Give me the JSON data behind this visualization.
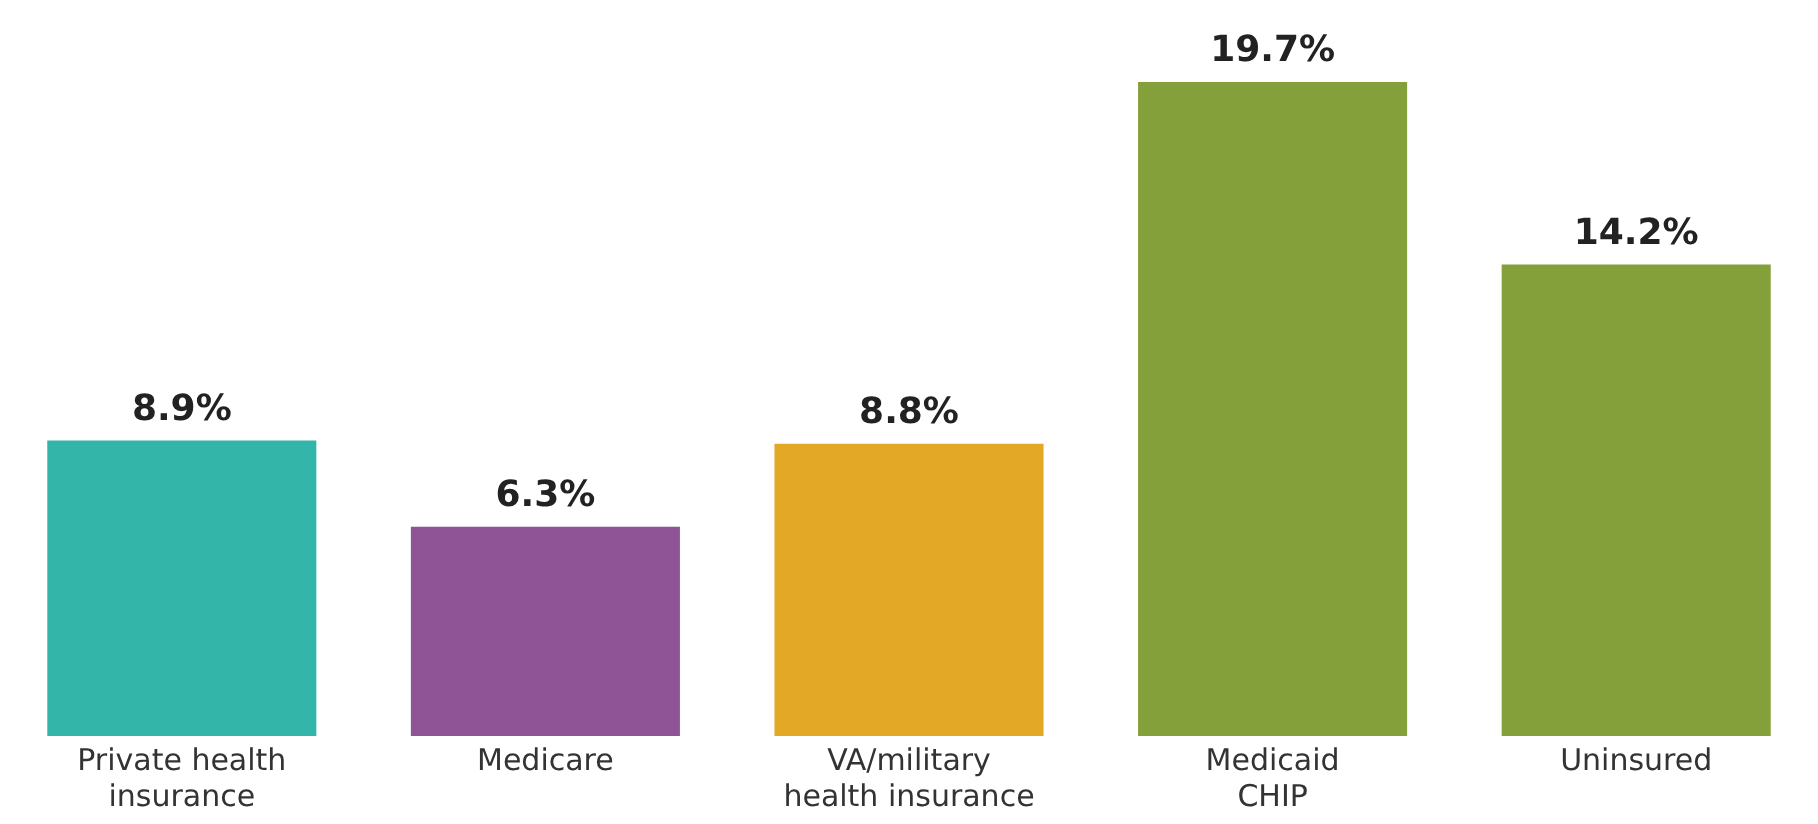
{
  "chart_data": {
    "type": "bar",
    "categories": [
      "Private health\ninsurance",
      "Medicare",
      "VA/military\nhealth insurance",
      "Medicaid\nCHIP",
      "Uninsured"
    ],
    "values": [
      8.9,
      6.3,
      8.8,
      19.7,
      14.2
    ],
    "value_labels": [
      "8.9%",
      "6.3%",
      "8.8%",
      "19.7%",
      "14.2%"
    ],
    "colors": [
      "#33b5aa",
      "#8e5496",
      "#e3a826",
      "#84a03a",
      "#84a03a"
    ],
    "grid": false,
    "legend": false
  }
}
